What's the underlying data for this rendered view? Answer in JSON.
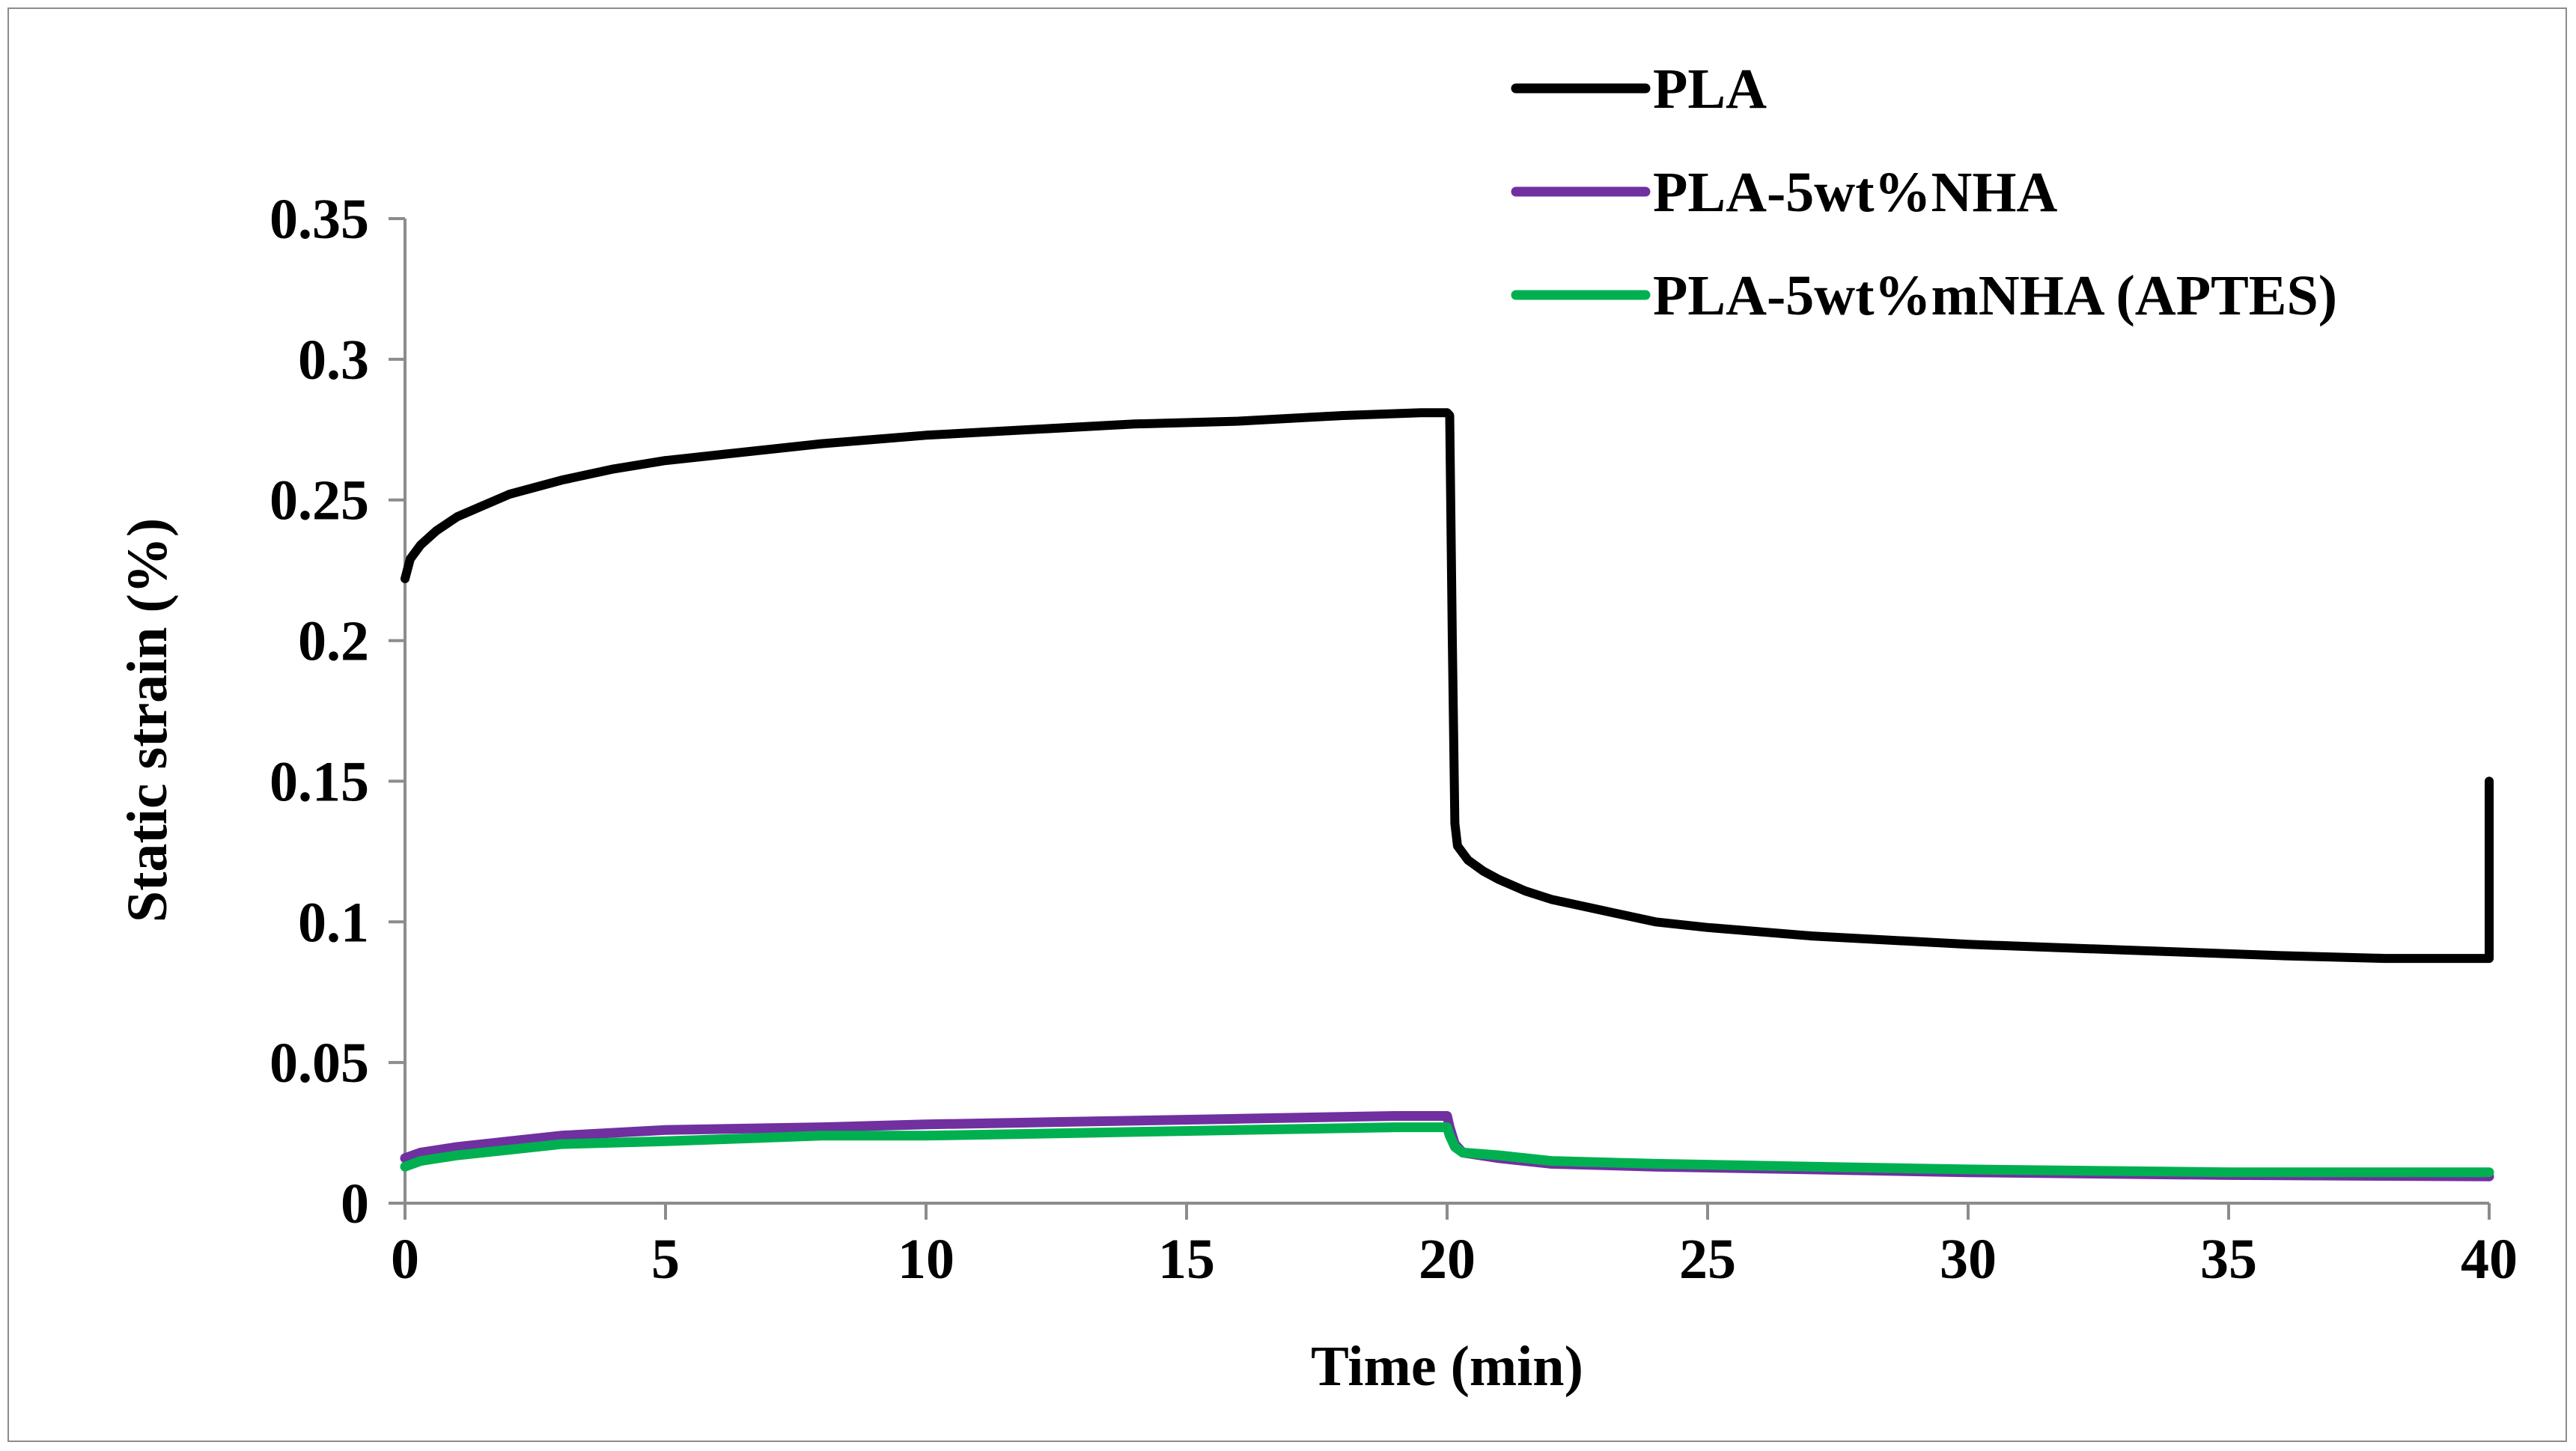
{
  "chart_data": {
    "type": "line",
    "title": "",
    "xlabel": "Time (min)",
    "ylabel": "Static strain (%)",
    "xlim": [
      0,
      40
    ],
    "ylim": [
      0,
      0.35
    ],
    "xticks": [
      0,
      5,
      10,
      15,
      20,
      25,
      30,
      35,
      40
    ],
    "yticks": [
      0,
      0.05,
      0.1,
      0.15,
      0.2,
      0.25,
      0.3,
      0.35
    ],
    "xtick_labels": [
      "0",
      "5",
      "10",
      "15",
      "20",
      "25",
      "30",
      "35",
      "40"
    ],
    "ytick_labels": [
      "0",
      "0.05",
      "0.1",
      "0.15",
      "0.2",
      "0.25",
      "0.3",
      "0.35"
    ],
    "grid": false,
    "legend_position": "top-right",
    "series": [
      {
        "name": "PLA",
        "color": "#000000",
        "x": [
          0,
          0.1,
          0.3,
          0.6,
          1,
          1.5,
          2,
          3,
          4,
          5,
          6,
          8,
          10,
          12,
          14,
          16,
          18,
          19.5,
          20,
          20.05,
          20.1,
          20.15,
          20.2,
          20.4,
          20.7,
          21,
          21.5,
          22,
          23,
          24,
          25,
          27,
          30,
          33,
          36,
          38,
          40,
          40,
          40
        ],
        "y": [
          0.222,
          0.229,
          0.234,
          0.239,
          0.244,
          0.248,
          0.252,
          0.257,
          0.261,
          0.264,
          0.266,
          0.27,
          0.273,
          0.275,
          0.277,
          0.278,
          0.28,
          0.281,
          0.281,
          0.28,
          0.2,
          0.135,
          0.127,
          0.122,
          0.118,
          0.115,
          0.111,
          0.108,
          0.104,
          0.1,
          0.098,
          0.095,
          0.092,
          0.09,
          0.088,
          0.087,
          0.087,
          0.105,
          0.15
        ]
      },
      {
        "name": "PLA-5wt%NHA",
        "color": "#7030A0",
        "x": [
          0,
          0.3,
          1,
          2,
          3,
          5,
          8,
          10,
          13,
          16,
          19,
          20,
          20.05,
          20.15,
          20.3,
          21,
          22,
          24,
          27,
          30,
          35,
          40
        ],
        "y": [
          0.016,
          0.018,
          0.02,
          0.022,
          0.024,
          0.026,
          0.027,
          0.028,
          0.029,
          0.03,
          0.031,
          0.031,
          0.027,
          0.021,
          0.018,
          0.016,
          0.014,
          0.013,
          0.012,
          0.011,
          0.01,
          0.0095
        ]
      },
      {
        "name": "PLA-5wt%mNHA (APTES)",
        "color": "#00B050",
        "x": [
          0,
          0.3,
          1,
          2,
          3,
          5,
          8,
          10,
          13,
          16,
          19,
          20,
          20.05,
          20.15,
          20.3,
          21,
          22,
          24,
          27,
          30,
          35,
          40
        ],
        "y": [
          0.013,
          0.015,
          0.017,
          0.019,
          0.021,
          0.022,
          0.024,
          0.024,
          0.025,
          0.026,
          0.027,
          0.027,
          0.024,
          0.02,
          0.018,
          0.017,
          0.015,
          0.014,
          0.013,
          0.012,
          0.011,
          0.011
        ]
      }
    ]
  }
}
